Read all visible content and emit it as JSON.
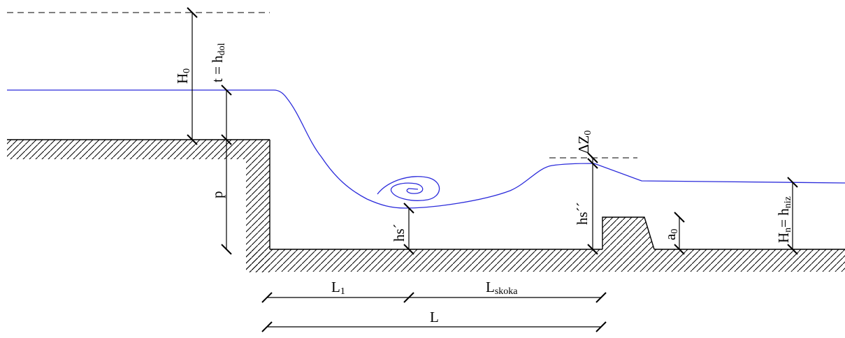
{
  "labels": {
    "H0": {
      "main": "H",
      "sub": "0"
    },
    "t_hdol": {
      "main": "t = h",
      "sub": "dol"
    },
    "p": "p",
    "hs1": "hs´",
    "hs2": "hs´´",
    "dZ0": {
      "main": "ΔZ",
      "sub": "0"
    },
    "a0": {
      "main": "a",
      "sub": "0"
    },
    "Hn_hniz": {
      "main1": "H",
      "sub1": "n",
      "mid": "= h",
      "sub2": "niz"
    },
    "L1": {
      "main": "L",
      "sub": "1"
    },
    "Lskoka": {
      "main": "L",
      "sub": "skoka"
    },
    "L": "L"
  },
  "colors": {
    "water": "#2b2bdb",
    "ink": "#000000"
  }
}
